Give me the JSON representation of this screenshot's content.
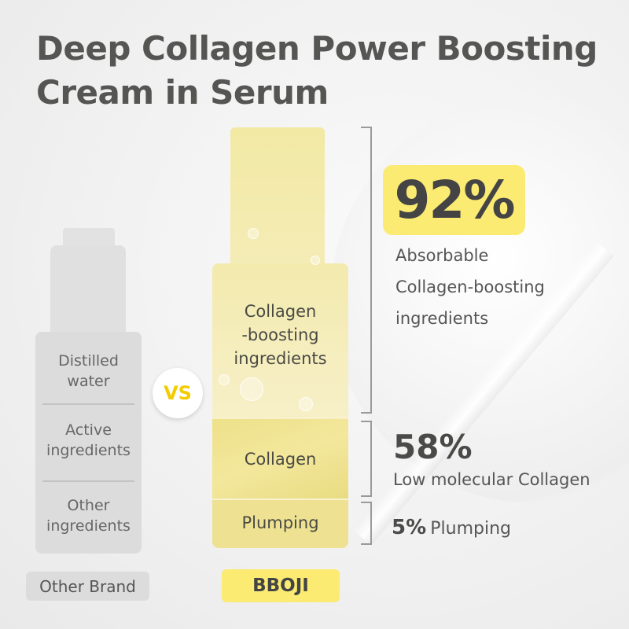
{
  "title": {
    "line1": "Deep Collagen Power Boosting",
    "line2": "Cream in Serum"
  },
  "colors": {
    "accent_yellow": "#fbeb73",
    "bottle_yellow": "#f3e9a6",
    "gray": "#dcdcdc",
    "text": "#4a4a48",
    "vs": "#f2cc00"
  },
  "other_bottle": {
    "segments": [
      {
        "label": "Distilled water"
      },
      {
        "label": "Active ingredients"
      },
      {
        "label": "Other ingredients"
      }
    ],
    "brand_label": "Other Brand"
  },
  "vs_label": "VS",
  "bboji_bottle": {
    "segments": [
      {
        "label_line1": "Collagen",
        "label_line2": "-boosting",
        "label_line3": "ingredients"
      },
      {
        "label": "Collagen"
      },
      {
        "label": "Plumping"
      }
    ],
    "brand_label": "BBOJI"
  },
  "stats": [
    {
      "value": "92%",
      "desc_line1": "Absorbable",
      "desc_line2": "Collagen-boosting",
      "desc_line3": "ingredients"
    },
    {
      "value": "58%",
      "desc": "Low molecular Collagen"
    },
    {
      "value": "5%",
      "desc": "Plumping"
    }
  ]
}
